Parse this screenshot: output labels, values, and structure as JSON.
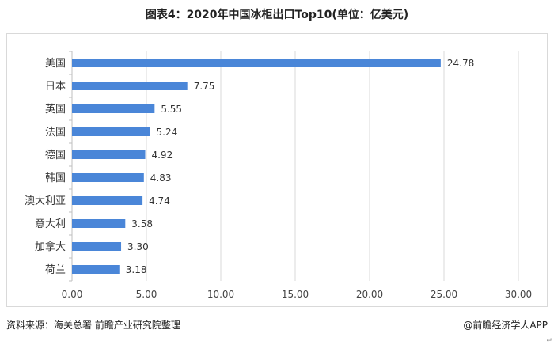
{
  "title": "图表4：2020年中国冰柜出口Top10(单位：亿美元)",
  "footer": {
    "source": "资料来源：海关总署 前瞻产业研究院整理",
    "brand": "@前瞻经济学人APP",
    "corner_mark": "↵"
  },
  "colors": {
    "bar": "#4a86d8",
    "grid": "#d9d9d9",
    "axis": "#bfbfbf"
  },
  "chart_data": {
    "type": "bar",
    "orientation": "horizontal",
    "title": "图表4：2020年中国冰柜出口Top10(单位：亿美元)",
    "categories": [
      "美国",
      "日本",
      "英国",
      "法国",
      "德国",
      "韩国",
      "澳大利亚",
      "意大利",
      "加拿大",
      "荷兰"
    ],
    "values": [
      24.78,
      7.75,
      5.55,
      5.24,
      4.92,
      4.83,
      4.74,
      3.58,
      3.3,
      3.18
    ],
    "value_labels": [
      "24.78",
      "7.75",
      "5.55",
      "5.24",
      "4.92",
      "4.83",
      "4.74",
      "3.58",
      "3.30",
      "3.18"
    ],
    "xlim": [
      0,
      30
    ],
    "xticks": [
      "0.00",
      "5.00",
      "10.00",
      "15.00",
      "20.00",
      "25.00",
      "30.00"
    ],
    "xtick_values": [
      0,
      5,
      10,
      15,
      20,
      25,
      30
    ],
    "xlabel": "",
    "ylabel": "",
    "grid": "vertical"
  }
}
